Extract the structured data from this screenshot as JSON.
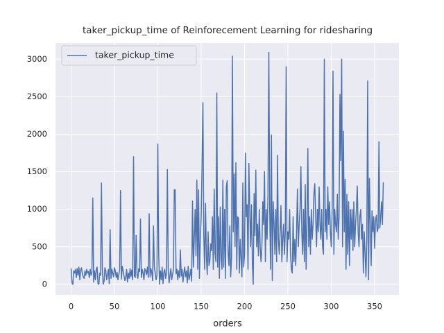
{
  "chart_data": {
    "type": "line",
    "title": "taker_pickup_time of Reinforecement Learning for ridesharing",
    "x_label": "orders",
    "legend": "upper left",
    "grid": true,
    "xlim": [
      -18,
      378
    ],
    "xticks": [
      0,
      50,
      100,
      150,
      200,
      250,
      300,
      350
    ],
    "ylim": [
      -140,
      3215
    ],
    "yticks": [
      0,
      500,
      1000,
      1500,
      2000,
      2500,
      3000
    ],
    "x": [
      0,
      1,
      2,
      3,
      4,
      5,
      6,
      7,
      8,
      9,
      10,
      11,
      12,
      13,
      14,
      15,
      16,
      17,
      18,
      19,
      20,
      21,
      22,
      23,
      24,
      25,
      26,
      27,
      28,
      29,
      30,
      31,
      32,
      33,
      34,
      35,
      36,
      37,
      38,
      39,
      40,
      41,
      42,
      43,
      44,
      45,
      46,
      47,
      48,
      49,
      50,
      51,
      52,
      53,
      54,
      55,
      56,
      57,
      58,
      59,
      60,
      61,
      62,
      63,
      64,
      65,
      66,
      67,
      68,
      69,
      70,
      71,
      72,
      73,
      74,
      75,
      76,
      77,
      78,
      79,
      80,
      81,
      82,
      83,
      84,
      85,
      86,
      87,
      88,
      89,
      90,
      91,
      92,
      93,
      94,
      95,
      96,
      97,
      98,
      99,
      100,
      101,
      102,
      103,
      104,
      105,
      106,
      107,
      108,
      109,
      110,
      111,
      112,
      113,
      114,
      115,
      116,
      117,
      118,
      119,
      120,
      121,
      122,
      123,
      124,
      125,
      126,
      127,
      128,
      129,
      130,
      131,
      132,
      133,
      134,
      135,
      136,
      137,
      138,
      139,
      140,
      141,
      142,
      143,
      144,
      145,
      146,
      147,
      148,
      149,
      150,
      151,
      152,
      153,
      154,
      155,
      156,
      157,
      158,
      159,
      160,
      161,
      162,
      163,
      164,
      165,
      166,
      167,
      168,
      169,
      170,
      171,
      172,
      173,
      174,
      175,
      176,
      177,
      178,
      179,
      180,
      181,
      182,
      183,
      184,
      185,
      186,
      187,
      188,
      189,
      190,
      191,
      192,
      193,
      194,
      195,
      196,
      197,
      198,
      199,
      200,
      201,
      202,
      203,
      204,
      205,
      206,
      207,
      208,
      209,
      210,
      211,
      212,
      213,
      214,
      215,
      216,
      217,
      218,
      219,
      220,
      221,
      222,
      223,
      224,
      225,
      226,
      227,
      228,
      229,
      230,
      231,
      232,
      233,
      234,
      235,
      236,
      237,
      238,
      239,
      240,
      241,
      242,
      243,
      244,
      245,
      246,
      247,
      248,
      249,
      250,
      251,
      252,
      253,
      254,
      255,
      256,
      257,
      258,
      259,
      260,
      261,
      262,
      263,
      264,
      265,
      266,
      267,
      268,
      269,
      270,
      271,
      272,
      273,
      274,
      275,
      276,
      277,
      278,
      279,
      280,
      281,
      282,
      283,
      284,
      285,
      286,
      287,
      288,
      289,
      290,
      291,
      292,
      293,
      294,
      295,
      296,
      297,
      298,
      299,
      300,
      301,
      302,
      303,
      304,
      305,
      306,
      307,
      308,
      309,
      310,
      311,
      312,
      313,
      314,
      315,
      316,
      317,
      318,
      319,
      320,
      321,
      322,
      323,
      324,
      325,
      326,
      327,
      328,
      329,
      330,
      331,
      332,
      333,
      334,
      335,
      336,
      337,
      338,
      339,
      340,
      341,
      342,
      343,
      344,
      345,
      346,
      347,
      348,
      349,
      350,
      351,
      352,
      353,
      354,
      355,
      356,
      357,
      358,
      359,
      360
    ],
    "series": [
      {
        "name": "taker_pickup_time",
        "color": "#4c72b0",
        "values": [
          210,
          20,
          0,
          180,
          150,
          200,
          90,
          210,
          120,
          230,
          60,
          190,
          220,
          140,
          100,
          80,
          180,
          120,
          200,
          150,
          170,
          90,
          200,
          120,
          160,
          1150,
          30,
          180,
          60,
          200,
          230,
          10,
          0,
          150,
          120,
          1350,
          200,
          0,
          40,
          220,
          180,
          60,
          130,
          200,
          10,
          730,
          80,
          200,
          150,
          100,
          220,
          180,
          90,
          160,
          60,
          130,
          200,
          1250,
          70,
          240,
          180,
          110,
          50,
          90,
          200,
          30,
          150,
          80,
          210,
          100,
          190,
          60,
          1700,
          110,
          90,
          650,
          130,
          80,
          210,
          170,
          870,
          90,
          200,
          150,
          60,
          210,
          180,
          130,
          230,
          90,
          940,
          100,
          210,
          160,
          50,
          780,
          230,
          150,
          60,
          120,
          1870,
          420,
          0,
          180,
          60,
          230,
          10,
          160,
          200,
          80,
          150,
          1530,
          200,
          20,
          120,
          210,
          60,
          130,
          200,
          1260,
          1260,
          140,
          200,
          60,
          180,
          90,
          460,
          110,
          200,
          30,
          150,
          230,
          100,
          180,
          20,
          240,
          60,
          120,
          200,
          40,
          1110,
          230,
          600,
          1000,
          380,
          1390,
          200,
          1260,
          80,
          600,
          900,
          1600,
          2420,
          650,
          200,
          1080,
          360,
          130,
          700,
          250,
          320,
          540,
          450,
          900,
          200,
          1270,
          420,
          300,
          2550,
          230,
          900,
          80,
          1030,
          350,
          200,
          1390,
          230,
          1000,
          80,
          1300,
          1380,
          420,
          250,
          780,
          100,
          350,
          3040,
          700,
          1470,
          500,
          1620,
          200,
          900,
          880,
          150,
          600,
          350,
          100,
          1350,
          230,
          400,
          1750,
          900,
          1060,
          200,
          1610,
          1000,
          500,
          1060,
          300,
          0,
          1210,
          650,
          1520,
          500,
          800,
          380,
          1000,
          500,
          300,
          500,
          1100,
          800,
          1500,
          300,
          1000,
          600,
          1200,
          3090,
          1000,
          200,
          1990,
          50,
          1100,
          800,
          400,
          1000,
          300,
          1720,
          600,
          400,
          700,
          1050,
          300,
          600,
          800,
          400,
          700,
          2900,
          300,
          700,
          600,
          1000,
          400,
          200,
          150,
          900,
          300,
          600,
          250,
          700,
          1270,
          500,
          800,
          1000,
          1570,
          700,
          400,
          1000,
          300,
          1330,
          200,
          800,
          1810,
          500,
          900,
          400,
          1000,
          600,
          800,
          1200,
          1340,
          900,
          500,
          1000,
          700,
          1300,
          800,
          600,
          1000,
          500,
          400,
          3000,
          700,
          1000,
          600,
          1300,
          800,
          1100,
          700,
          500,
          1000,
          2840,
          400,
          1000,
          800,
          700,
          1200,
          600,
          900,
          2530,
          1650,
          3000,
          500,
          2040,
          700,
          1400,
          200,
          1200,
          400,
          1100,
          250,
          1000,
          600,
          1000,
          450,
          1100,
          500,
          800,
          1000,
          1310,
          700,
          500,
          900,
          1000,
          600,
          800,
          150,
          700,
          400,
          100,
          600,
          2710,
          60,
          1410,
          800,
          250,
          980,
          700,
          900,
          480,
          850,
          920,
          700,
          750,
          1900,
          750,
          900,
          1100,
          800,
          1360
        ]
      }
    ]
  }
}
